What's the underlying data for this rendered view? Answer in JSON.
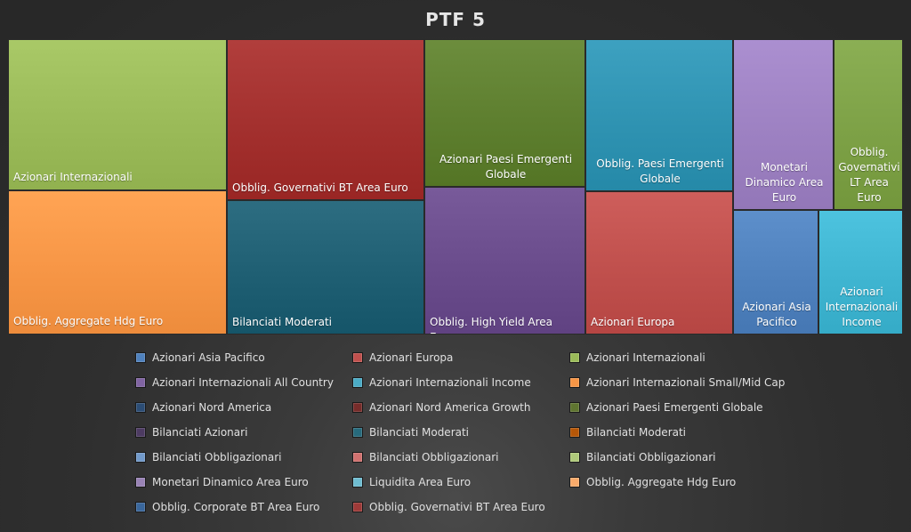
{
  "chart_data": {
    "type": "treemap",
    "title": "PTF 5",
    "legend_position": "bottom",
    "items": [
      {
        "name": "Azionari Internazionali",
        "color": "#9bbb59",
        "label": "Azionari Internazionali"
      },
      {
        "name": "Obblig. Aggregate Hdg Euro",
        "color": "#f79646",
        "label": "Obblig. Aggregate Hdg Euro"
      },
      {
        "name": "Obblig. Governativi BT Area Euro",
        "color": "#a3302e",
        "label": "Obblig. Governativi BT Area Euro"
      },
      {
        "name": "Bilanciati Moderati",
        "color": "#1f5f73",
        "label": "Bilanciati Moderati"
      },
      {
        "name": "Azionari Paesi Emergenti Globale",
        "color": "#5e7f2f",
        "label": "Azionari Paesi Emergenti Globale"
      },
      {
        "name": "Obblig. High Yield Area Euro",
        "color": "#6a4c8c",
        "label": "Obblig. High Yield Area Euro"
      },
      {
        "name": "Obblig. Paesi Emergenti Globale",
        "color": "#2f93b2",
        "label": "Obblig. Paesi Emergenti Globale"
      },
      {
        "name": "Azionari Europa",
        "color": "#c0504d",
        "label": "Azionari Europa"
      },
      {
        "name": "Monetari Dinamico Area Euro",
        "color": "#9d81c2",
        "label": "Monetari Dinamico Area Euro"
      },
      {
        "name": "Obblig. Governativi LT Area Euro",
        "color": "#7da146",
        "label": "Obblig. Governativi LT Area Euro"
      },
      {
        "name": "Azionari Asia Pacifico",
        "color": "#4f81bd",
        "label": "Azionari Asia Pacifico"
      },
      {
        "name": "Azionari Internazionali Income",
        "color": "#3fb5d1",
        "label": "Azionari Internazionali Income"
      }
    ]
  },
  "legend": [
    {
      "label": "Azionari Asia Pacifico",
      "color": "#4f81bd"
    },
    {
      "label": "Azionari Europa",
      "color": "#c0504d"
    },
    {
      "label": "Azionari Internazionali",
      "color": "#9bbb59"
    },
    {
      "label": "Azionari Internazionali All Country",
      "color": "#8064a2"
    },
    {
      "label": "Azionari Internazionali Income",
      "color": "#4bacc6"
    },
    {
      "label": "Azionari Internazionali Small/Mid Cap",
      "color": "#f79646"
    },
    {
      "label": "Azionari Nord America",
      "color": "#2c4d75"
    },
    {
      "label": "Azionari Nord America Growth",
      "color": "#772c2a"
    },
    {
      "label": "Azionari Paesi Emergenti Globale",
      "color": "#5f7530"
    },
    {
      "label": "Bilanciati Azionari",
      "color": "#4d3b62"
    },
    {
      "label": "Bilanciati Moderati",
      "color": "#276a7c"
    },
    {
      "label": "Bilanciati Moderati",
      "color": "#b65708"
    },
    {
      "label": "Bilanciati Obbligazionari",
      "color": "#729aca"
    },
    {
      "label": "Bilanciati Obbligazionari",
      "color": "#d1716f"
    },
    {
      "label": "Bilanciati Obbligazionari",
      "color": "#afc97a"
    },
    {
      "label": "Monetari Dinamico Area Euro",
      "color": "#9983b5"
    },
    {
      "label": "Liquidita Area Euro",
      "color": "#6fbdd1"
    },
    {
      "label": "Obblig. Aggregate Hdg Euro",
      "color": "#f9ab6b"
    },
    {
      "label": "Obblig. Corporate BT Area Euro",
      "color": "#3a679c"
    },
    {
      "label": "Obblig. Governativi BT Area Euro",
      "color": "#9e3a38"
    }
  ]
}
